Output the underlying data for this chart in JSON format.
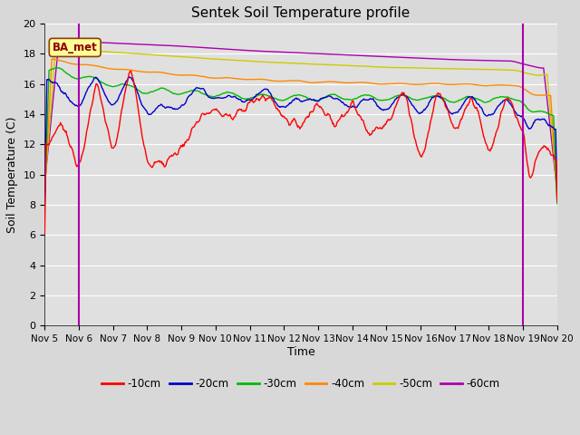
{
  "title": "Sentek Soil Temperature profile",
  "xlabel": "Time",
  "ylabel": "Soil Temperature (C)",
  "ylim": [
    0,
    20
  ],
  "yticks": [
    0,
    2,
    4,
    6,
    8,
    10,
    12,
    14,
    16,
    18,
    20
  ],
  "x_labels": [
    "Nov 5",
    "Nov 6",
    "Nov 7",
    "Nov 8",
    "Nov 9",
    "Nov 10",
    "Nov 11",
    "Nov 12",
    "Nov 13",
    "Nov 14",
    "Nov 15",
    "Nov 16",
    "Nov 17",
    "Nov 18",
    "Nov 19",
    "Nov 20"
  ],
  "colors": {
    "-10cm": "#ff0000",
    "-20cm": "#0000cc",
    "-30cm": "#00bb00",
    "-40cm": "#ff8800",
    "-50cm": "#cccc00",
    "-60cm": "#aa00aa"
  },
  "vline1_day": 1,
  "vline2_day": 14,
  "annotation_text": "BA_met",
  "background_color": "#d8d8d8",
  "plot_bg_color": "#e0e0e0",
  "n_days": 15,
  "pts_per_day": 48
}
